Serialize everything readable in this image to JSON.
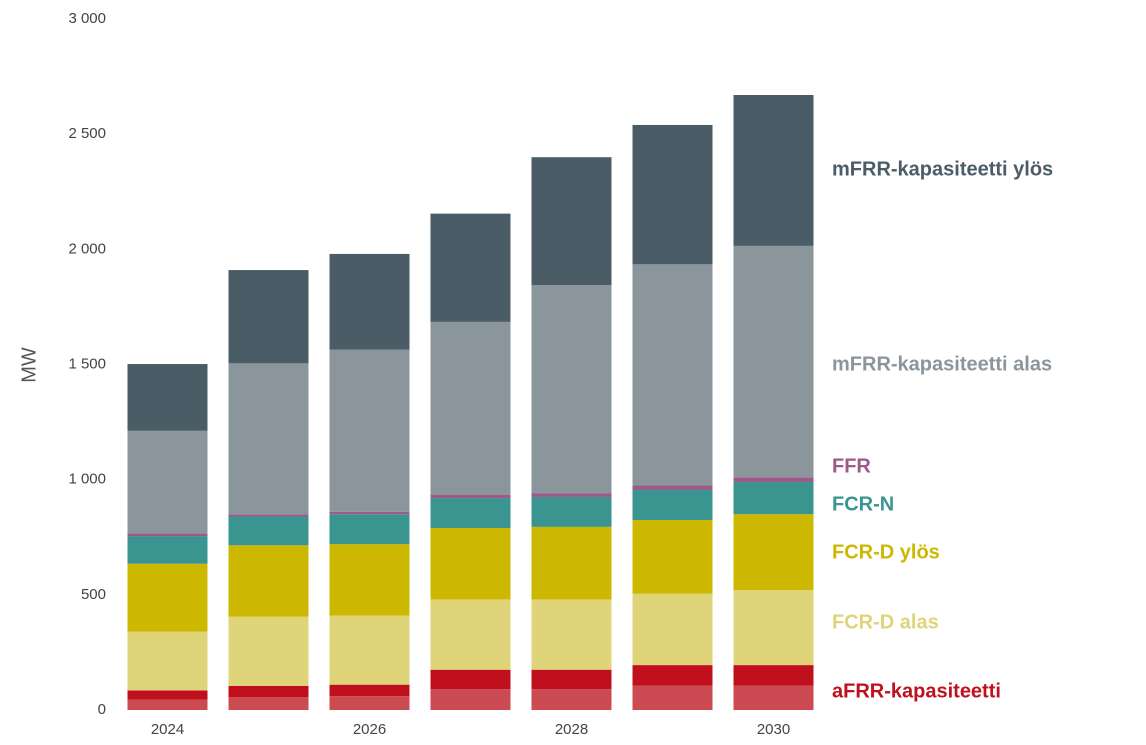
{
  "chart_data": {
    "type": "stacked_bar",
    "ylabel": "MW",
    "categories": [
      "2024",
      null,
      "2026",
      null,
      "2028",
      null,
      "2030"
    ],
    "ylim": [
      0,
      3000
    ],
    "yticks": [
      0,
      500,
      {
        "value": 1000,
        "label": "1 000"
      },
      {
        "value": 1500,
        "label": "1 500"
      },
      {
        "value": 2000,
        "label": "2 000"
      },
      {
        "value": 2500,
        "label": "2 500"
      },
      {
        "value": 3000,
        "label": "3 000"
      }
    ],
    "series": [
      {
        "color": "#cc4a52",
        "values": [
          45,
          55,
          60,
          90,
          90,
          105,
          105
        ]
      },
      {
        "name": "aFRR-kapasiteetti",
        "color": "#c0101e",
        "values": [
          40,
          50,
          50,
          85,
          85,
          90,
          90
        ]
      },
      {
        "name": "FCR-D alas",
        "color": "#e0d47a",
        "values": [
          255,
          300,
          300,
          305,
          305,
          310,
          325
        ]
      },
      {
        "name": "FCR-D ylös",
        "color": "#ccb800",
        "values": [
          295,
          310,
          310,
          310,
          315,
          320,
          330
        ]
      },
      {
        "name": "FCR-N",
        "color": "#3a9590",
        "values": [
          120,
          125,
          130,
          130,
          130,
          130,
          140
        ]
      },
      {
        "name": "FFR",
        "color": "#9b5a87",
        "values": [
          12,
          10,
          10,
          15,
          15,
          20,
          20
        ]
      },
      {
        "name": "mFRR-kapasiteetti alas",
        "color": "#8a959c",
        "values": [
          445,
          655,
          705,
          750,
          905,
          960,
          1005
        ]
      },
      {
        "name": "mFRR-kapasiteetti ylös",
        "color": "#4a5c66",
        "values": [
          290,
          405,
          415,
          470,
          555,
          605,
          655
        ]
      }
    ]
  }
}
